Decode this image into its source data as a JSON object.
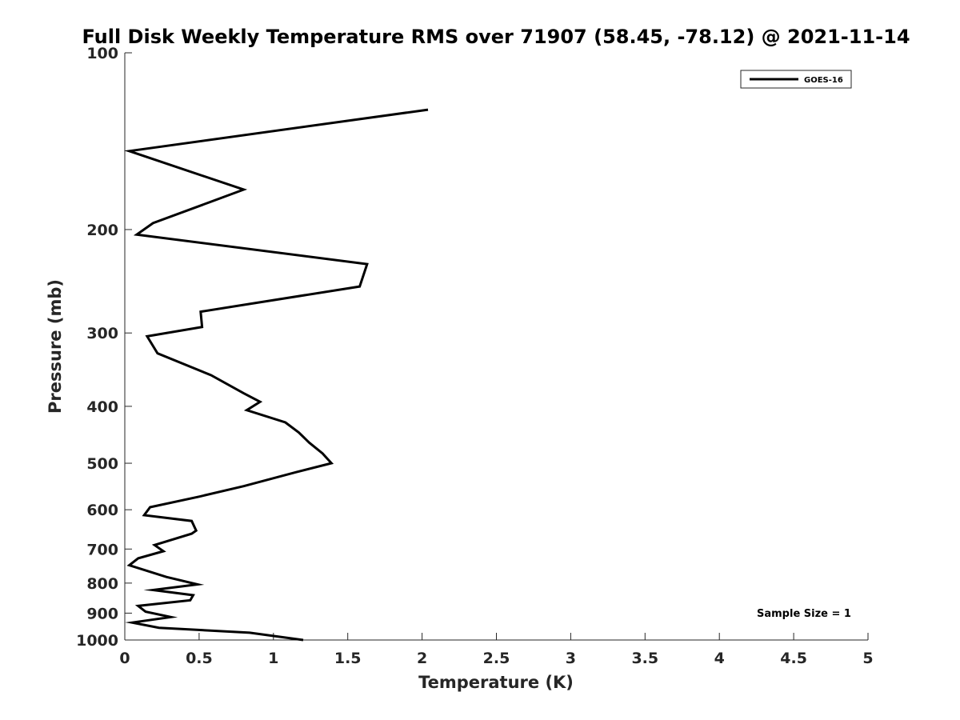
{
  "chart_data": {
    "type": "line",
    "title": "Full Disk Weekly Temperature RMS over 71907 (58.45, -78.12) @ 2021-11-14",
    "xlabel": "Temperature (K)",
    "ylabel": "Pressure (mb)",
    "xlim": [
      0,
      5
    ],
    "ylim": [
      100,
      1000
    ],
    "y_scale": "log",
    "y_reversed": true,
    "x_ticks": [
      "0",
      "0.5",
      "1",
      "1.5",
      "2",
      "2.5",
      "3",
      "3.5",
      "4",
      "4.5",
      "5"
    ],
    "y_ticks": [
      "100",
      "200",
      "300",
      "400",
      "500",
      "600",
      "700",
      "800",
      "900",
      "1000"
    ],
    "grid": false,
    "legend": {
      "position": "top-right",
      "entries": [
        "GOES-16"
      ]
    },
    "series": [
      {
        "name": "GOES-16",
        "color": "#000000",
        "points": [
          [
            2.04,
            125
          ],
          [
            0.03,
            147
          ],
          [
            0.8,
            171
          ],
          [
            0.19,
            195
          ],
          [
            0.08,
            204
          ],
          [
            1.63,
            229
          ],
          [
            1.58,
            250
          ],
          [
            0.51,
            276
          ],
          [
            0.52,
            293
          ],
          [
            0.15,
            304
          ],
          [
            0.22,
            325
          ],
          [
            0.58,
            354
          ],
          [
            0.8,
            380
          ],
          [
            0.91,
            393
          ],
          [
            0.82,
            406
          ],
          [
            1.08,
            426
          ],
          [
            1.17,
            443
          ],
          [
            1.24,
            461
          ],
          [
            1.33,
            481
          ],
          [
            1.39,
            500
          ],
          [
            1.15,
            518
          ],
          [
            0.8,
            547
          ],
          [
            0.5,
            570
          ],
          [
            0.17,
            594
          ],
          [
            0.13,
            613
          ],
          [
            0.45,
            627
          ],
          [
            0.48,
            651
          ],
          [
            0.45,
            659
          ],
          [
            0.2,
            689
          ],
          [
            0.26,
            706
          ],
          [
            0.09,
            726
          ],
          [
            0.03,
            746
          ],
          [
            0.28,
            781
          ],
          [
            0.49,
            804
          ],
          [
            0.19,
            822
          ],
          [
            0.46,
            839
          ],
          [
            0.44,
            856
          ],
          [
            0.09,
            875
          ],
          [
            0.14,
            895
          ],
          [
            0.31,
            914
          ],
          [
            0.05,
            934
          ],
          [
            0.23,
            953
          ],
          [
            0.84,
            972
          ],
          [
            1.2,
            1000
          ]
        ]
      }
    ],
    "annotations": [
      "Sample Size = 1"
    ]
  }
}
